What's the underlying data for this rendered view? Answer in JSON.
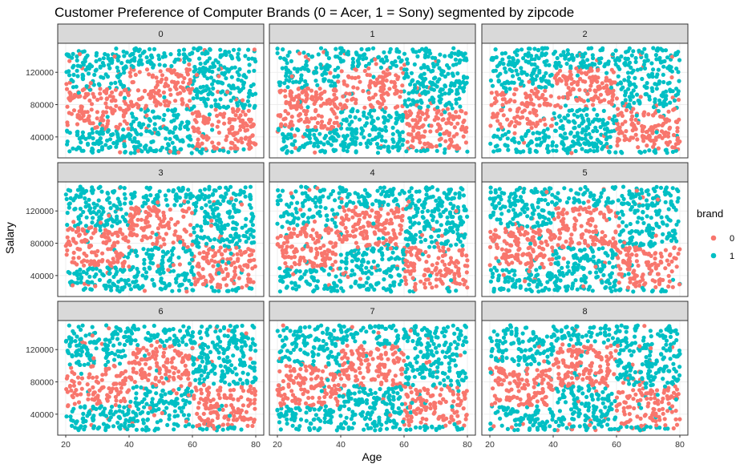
{
  "chart_data": {
    "type": "scatter",
    "title": "Customer Preference of Computer Brands (0 = Acer, 1 = Sony) segmented by zipcode",
    "xlabel": "Age",
    "ylabel": "Salary",
    "xlim": [
      20,
      80
    ],
    "ylim": [
      20000,
      150000
    ],
    "x_ticks": [
      20,
      40,
      60,
      80
    ],
    "y_ticks": [
      40000,
      80000,
      120000
    ],
    "x_tick_labels": [
      "20",
      "40",
      "60",
      "80"
    ],
    "y_tick_labels": [
      "40000",
      "80000",
      "120000"
    ],
    "facet_variable": "zipcode",
    "facets": [
      "0",
      "1",
      "2",
      "3",
      "4",
      "5",
      "6",
      "7",
      "8"
    ],
    "facet_layout": {
      "rows": 3,
      "cols": 3
    },
    "grid": true,
    "legend": {
      "title": "brand",
      "position": "right",
      "entries": [
        {
          "label": "0",
          "color": "#F8766D"
        },
        {
          "label": "1",
          "color": "#00BFC4"
        }
      ]
    },
    "series": [
      {
        "name": "0",
        "color": "#F8766D"
      },
      {
        "name": "1",
        "color": "#00BFC4"
      }
    ],
    "decision_rule": {
      "description": "brand 0 regions (approximate) in Age/Salary space",
      "brand0_regions": [
        {
          "age": [
            20,
            40
          ],
          "salary": [
            50000,
            100000
          ]
        },
        {
          "age": [
            40,
            60
          ],
          "salary": [
            75000,
            125000
          ]
        },
        {
          "age": [
            60,
            80
          ],
          "salary": [
            25000,
            75000
          ]
        }
      ]
    },
    "points_per_facet": 1000
  }
}
